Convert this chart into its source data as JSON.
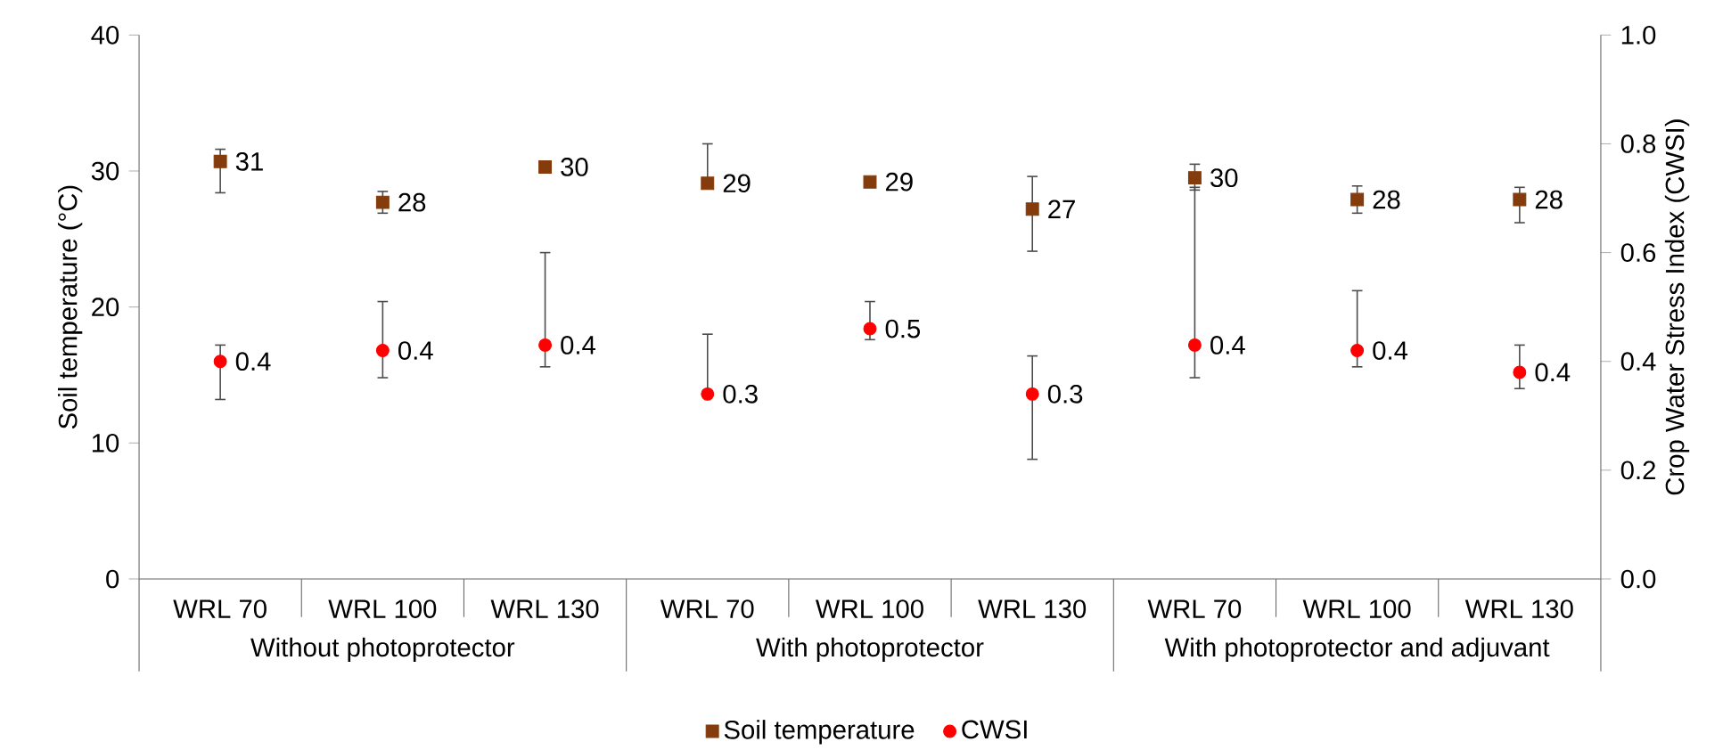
{
  "chart_data": {
    "type": "scatter",
    "categories": [
      "WRL 70",
      "WRL 100",
      "WRL 130",
      "WRL 70",
      "WRL 100",
      "WRL 130",
      "WRL 70",
      "WRL 100",
      "WRL 130"
    ],
    "annotations": [
      "Without photoprotector",
      "With photoprotector",
      "With photoprotector and adjuvant"
    ],
    "ylabel": "Soil temperature (°C)",
    "y2label": "Crop Water Stress Index (CWSI)",
    "ylim": [
      0,
      40
    ],
    "yticks": [
      0,
      10,
      20,
      30,
      40
    ],
    "y2lim": [
      0,
      1
    ],
    "y2ticks": [
      {
        "value": 0,
        "label": "0.0"
      },
      {
        "value": 0.2,
        "label": "0.2"
      },
      {
        "value": 0.4,
        "label": "0.4"
      },
      {
        "value": 0.6,
        "label": "0.6"
      },
      {
        "value": 0.8,
        "label": "0.8"
      },
      {
        "value": 1,
        "label": "1.0"
      }
    ],
    "legend": "bottom",
    "grid": false,
    "series": [
      {
        "name": "Soil temperature",
        "color": "#843c0c",
        "marker": "square",
        "values": [
          30.7,
          27.7,
          30.3,
          29.1,
          29.2,
          27.2,
          29.5,
          27.9,
          27.9
        ],
        "errors": [
          [
            28.4,
            31.6
          ],
          0.8,
          null,
          [
            29.1,
            32.0
          ],
          null,
          [
            24.1,
            29.6
          ],
          [
            28.6,
            30.5
          ],
          1.0,
          [
            26.2,
            28.8
          ]
        ],
        "value_labels": [
          "31",
          "28",
          "30",
          "29",
          "29",
          "27",
          "30",
          "28",
          "28"
        ]
      },
      {
        "name": "CWSI",
        "color": "#ff0000",
        "marker": "circle",
        "axis": "y2",
        "values": [
          0.4,
          0.42,
          0.43,
          0.34,
          0.46,
          0.34,
          0.43,
          0.42,
          0.38
        ],
        "errors": [
          [
            0.33,
            0.43
          ],
          [
            0.37,
            0.51
          ],
          [
            0.39,
            0.6
          ],
          [
            0.34,
            0.45
          ],
          [
            0.44,
            0.51
          ],
          [
            0.22,
            0.41
          ],
          [
            0.37,
            0.72
          ],
          [
            0.39,
            0.53
          ],
          [
            0.35,
            0.43
          ]
        ],
        "value_labels": [
          "0.4",
          "0.4",
          "0.4",
          "0.3",
          "0.5",
          "0.3",
          "0.4",
          "0.4",
          "0.4"
        ]
      }
    ]
  }
}
